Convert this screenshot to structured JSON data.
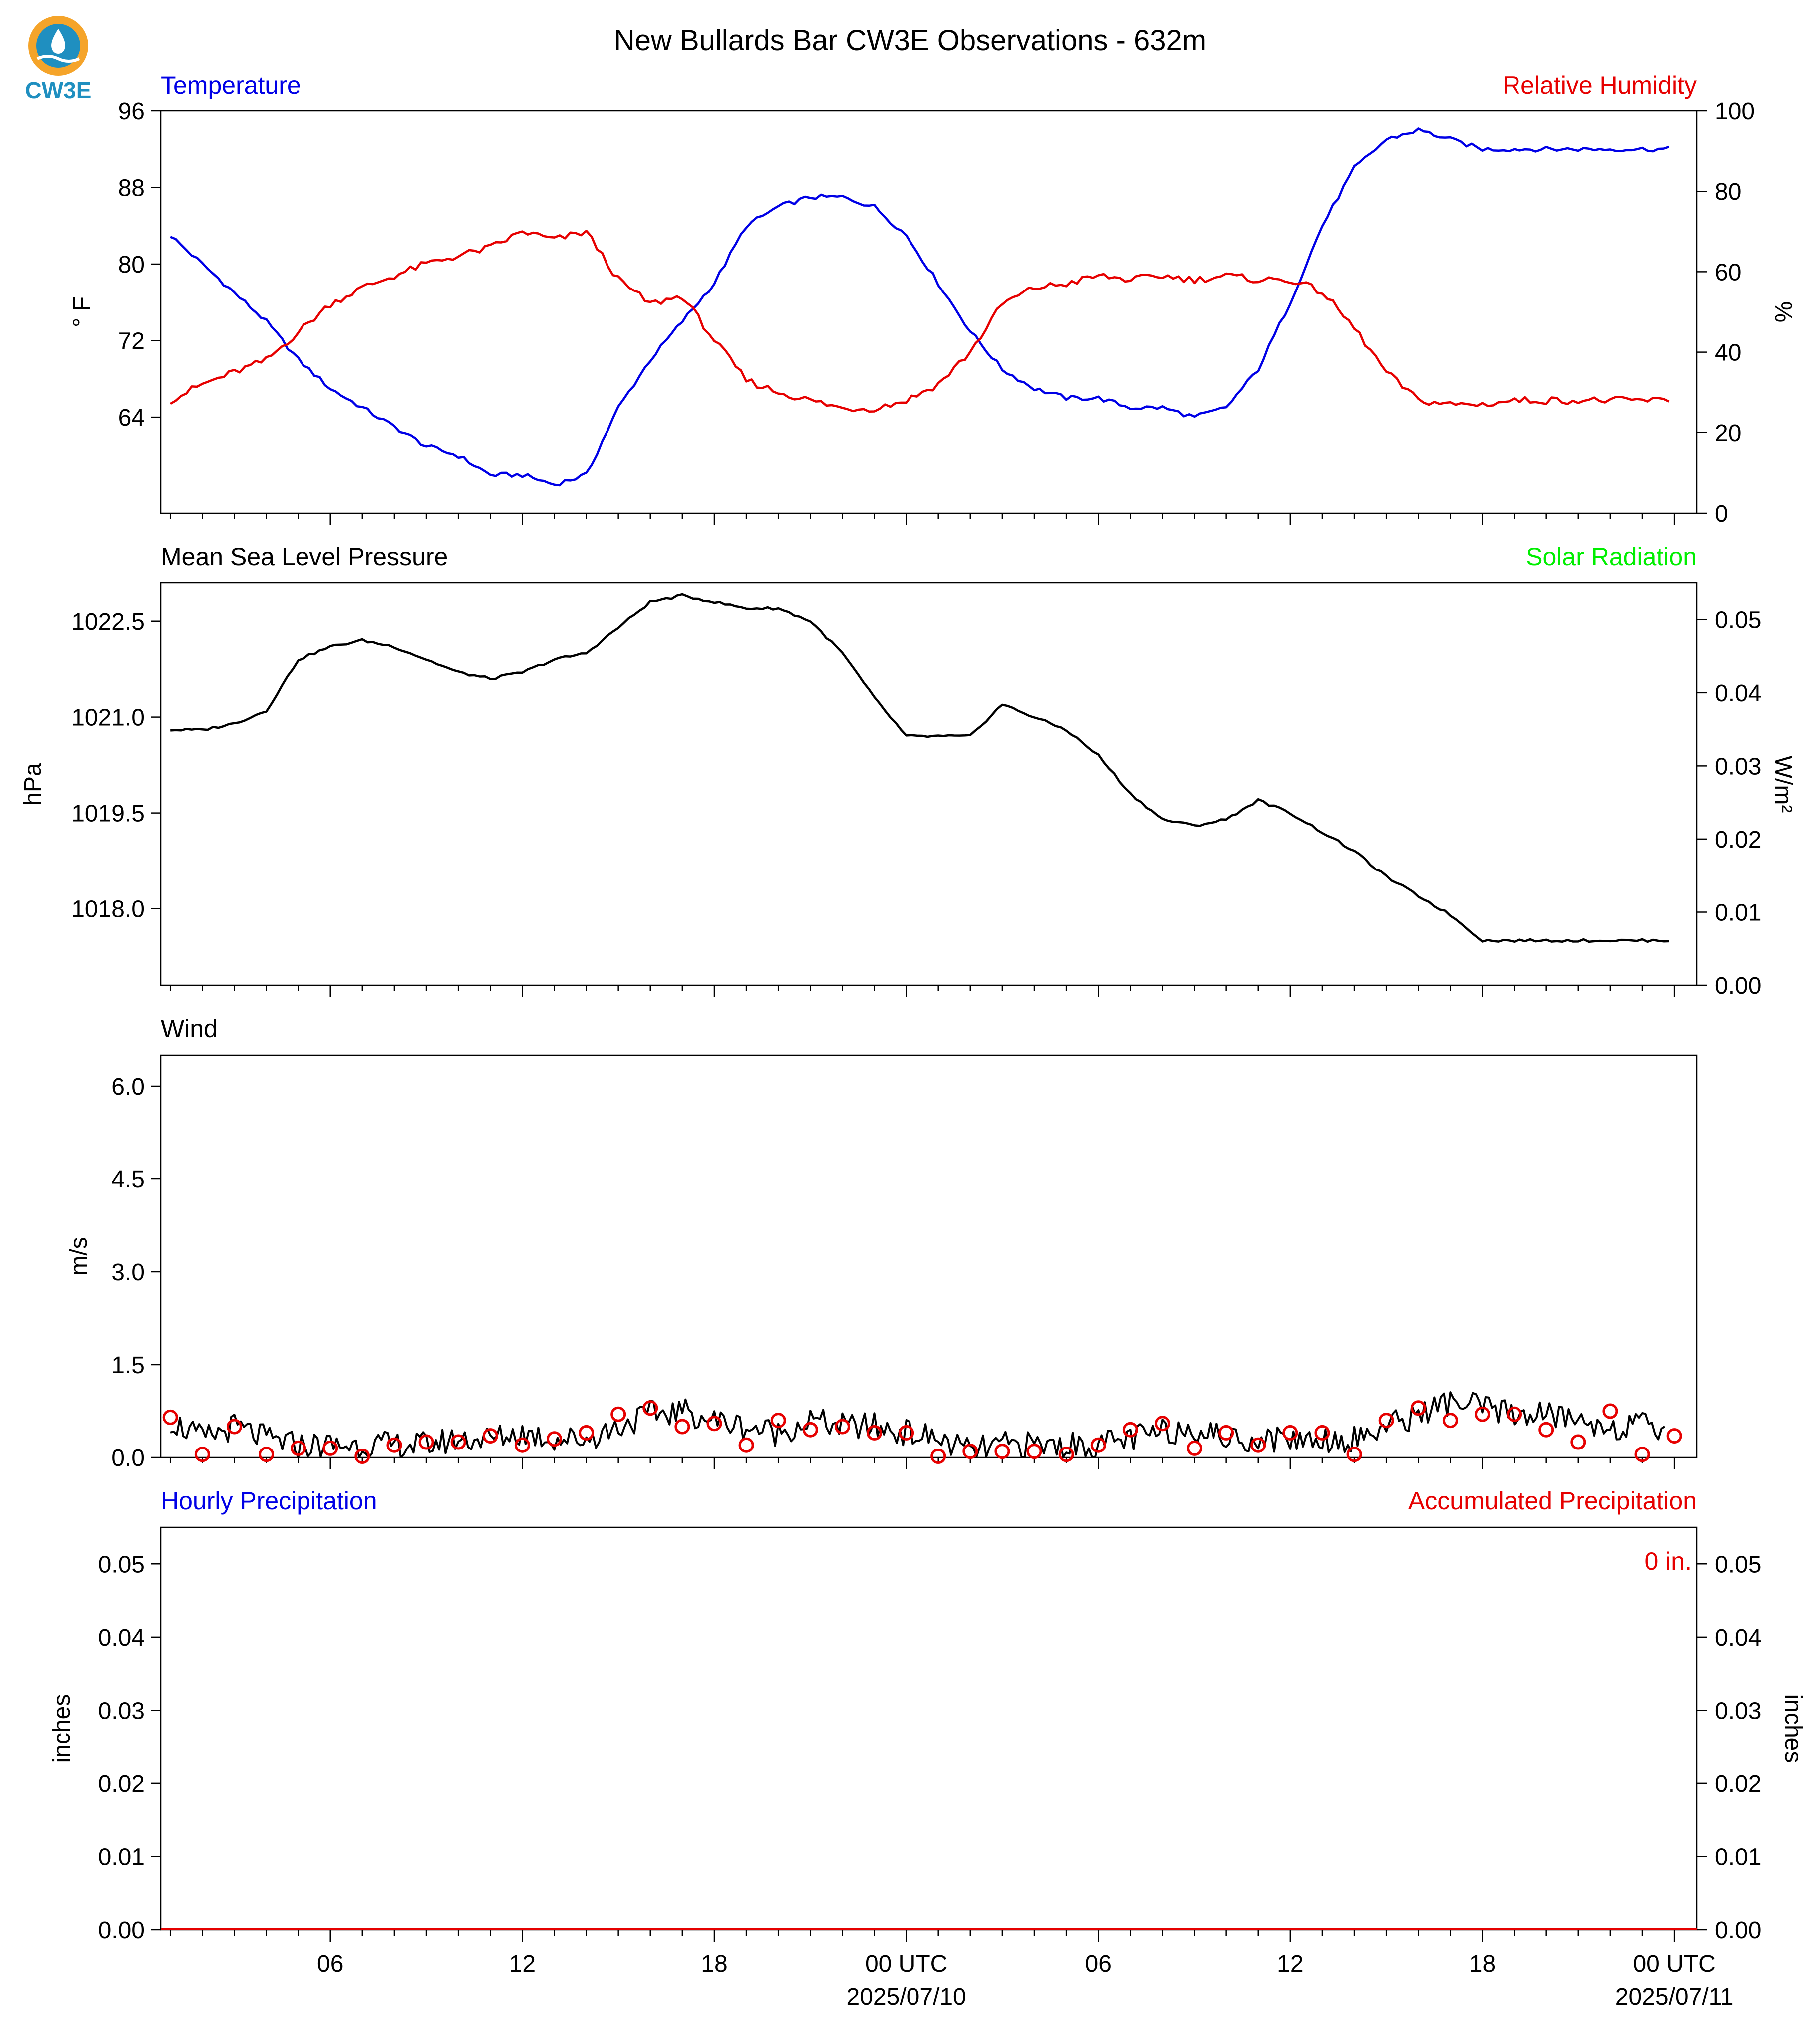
{
  "title": "New Bullards Bar CW3E Observations - 632m",
  "logo": {
    "text": "CW3E",
    "colors": {
      "ring": "#f5a42a",
      "body": "#1f8fc0",
      "text": "#1f8fc0"
    }
  },
  "colors": {
    "blue": "#0000e6",
    "red": "#e60000",
    "green": "#00ee00",
    "black": "#000000"
  },
  "x_axis": {
    "tick_labels": [
      "06",
      "12",
      "18",
      "00 UTC",
      "06",
      "12",
      "18",
      "00 UTC"
    ],
    "date_labels": [
      "2025/07/10",
      "2025/07/11"
    ]
  },
  "chart_data": [
    {
      "type": "line",
      "panel": "temperature-humidity",
      "left_title": "Temperature",
      "right_title": "Relative Humidity",
      "ylabel": "° F",
      "ylabel_right": "%",
      "ylim": [
        54,
        96
      ],
      "ylim_right": [
        0,
        100
      ],
      "yticks": [
        64,
        72,
        80,
        88,
        96
      ],
      "yticks_right": [
        0,
        20,
        40,
        60,
        80,
        100
      ],
      "x_hours": [
        0,
        1,
        2,
        3,
        4,
        5,
        6,
        7,
        8,
        9,
        10,
        11,
        12,
        13,
        14,
        15,
        16,
        17,
        18,
        19,
        20,
        21,
        22,
        23,
        24,
        25,
        26,
        27,
        28,
        29,
        30,
        31,
        32,
        33,
        34,
        35,
        36,
        37,
        38,
        39,
        40,
        41,
        42,
        43,
        44,
        45,
        46,
        47
      ],
      "series": [
        {
          "name": "Temperature",
          "axis": "left",
          "color": "#0000e6",
          "values": [
            83,
            80,
            77,
            74,
            70,
            67,
            65,
            63,
            61,
            60,
            58,
            58,
            57,
            58,
            65,
            70,
            74,
            78,
            84,
            86,
            87,
            87,
            86,
            83,
            78,
            73,
            69,
            67,
            66,
            66,
            65,
            65,
            64,
            65,
            69,
            76,
            84,
            90,
            93,
            94,
            93,
            92,
            92,
            92,
            92,
            92,
            92,
            92
          ]
        },
        {
          "name": "Relative Humidity",
          "axis": "right",
          "color": "#e60000",
          "values": [
            28,
            32,
            35,
            38,
            45,
            52,
            56,
            59,
            62,
            64,
            66,
            70,
            68,
            70,
            58,
            52,
            54,
            43,
            33,
            30,
            28,
            26,
            26,
            28,
            32,
            40,
            52,
            56,
            57,
            59,
            58,
            59,
            58,
            59,
            58,
            58,
            55,
            46,
            35,
            28,
            27,
            27,
            28,
            28,
            28,
            28,
            28,
            28
          ]
        }
      ]
    },
    {
      "type": "line",
      "panel": "pressure-solar",
      "left_title": "Mean Sea Level Pressure",
      "right_title": "Solar Radiation",
      "ylabel": "hPa",
      "ylabel_right": "W/m²",
      "ylim": [
        1016.8,
        1023.1
      ],
      "ylim_right": [
        0,
        0.055
      ],
      "yticks": [
        1018.0,
        1019.5,
        1021.0,
        1022.5
      ],
      "yticks_right": [
        0.0,
        0.01,
        0.02,
        0.03,
        0.04,
        0.05
      ],
      "series": [
        {
          "name": "Mean Sea Level Pressure",
          "axis": "left",
          "color": "#000000",
          "values": [
            1020.8,
            1020.8,
            1020.9,
            1021.1,
            1021.9,
            1022.1,
            1022.2,
            1022.1,
            1021.9,
            1021.7,
            1021.6,
            1021.7,
            1021.9,
            1022.0,
            1022.4,
            1022.8,
            1022.9,
            1022.8,
            1022.7,
            1022.7,
            1022.5,
            1022.0,
            1021.3,
            1020.7,
            1020.7,
            1020.7,
            1021.2,
            1021.0,
            1020.8,
            1020.4,
            1019.8,
            1019.4,
            1019.3,
            1019.4,
            1019.7,
            1019.5,
            1019.2,
            1018.9,
            1018.5,
            1018.2,
            1017.9,
            1017.5,
            1017.5,
            1017.5,
            1017.5,
            1017.5,
            1017.5,
            1017.5
          ]
        }
      ]
    },
    {
      "type": "line",
      "panel": "wind",
      "left_title": "Wind",
      "ylabel": "m/s",
      "ylim": [
        0,
        6.5
      ],
      "yticks": [
        0.0,
        1.5,
        3.0,
        4.5,
        6.0
      ],
      "series": [
        {
          "name": "Wind speed",
          "color": "#000000",
          "values": [
            0.6,
            0.3,
            0.5,
            0.3,
            0.2,
            0.2,
            0.2,
            0.2,
            0.2,
            0.3,
            0.3,
            0.4,
            0.3,
            0.3,
            0.5,
            0.7,
            0.75,
            0.6,
            0.5,
            0.4,
            0.6,
            0.5,
            0.5,
            0.4,
            0.3,
            0.1,
            0.2,
            0.2,
            0.2,
            0.2,
            0.3,
            0.4,
            0.5,
            0.3,
            0.3,
            0.3,
            0.3,
            0.3,
            0.5,
            0.7,
            0.9,
            0.8,
            0.7,
            0.7,
            0.6,
            0.5,
            0.5,
            0.5
          ]
        },
        {
          "name": "Hourly markers",
          "color": "#e60000",
          "values": [
            0.65,
            0.05,
            0.5,
            0.05,
            0.15,
            0.15,
            0.02,
            0.2,
            0.25,
            0.25,
            0.35,
            0.2,
            0.3,
            0.4,
            0.7,
            0.8,
            0.5,
            0.55,
            0.2,
            0.6,
            0.45,
            0.5,
            0.4,
            0.4,
            0.02,
            0.1,
            0.1,
            0.1,
            0.05,
            0.2,
            0.45,
            0.55,
            0.15,
            0.4,
            0.2,
            0.4,
            0.4,
            0.05,
            0.6,
            0.8,
            0.6,
            0.7,
            0.7,
            0.45,
            0.25,
            0.75,
            0.05,
            0.35
          ]
        }
      ]
    },
    {
      "type": "line",
      "panel": "precipitation",
      "left_title": "Hourly Precipitation",
      "right_title": "Accumulated Precipitation",
      "ylabel": "inches",
      "ylabel_right": "inches",
      "ylim": [
        0,
        0.055
      ],
      "ylim_right": [
        0,
        0.055
      ],
      "yticks": [
        0.0,
        0.01,
        0.02,
        0.03,
        0.04,
        0.05
      ],
      "yticks_right": [
        0.0,
        0.01,
        0.02,
        0.03,
        0.04,
        0.05
      ],
      "annotation": "0 in.",
      "series": [
        {
          "name": "Hourly Precipitation",
          "color": "#0000e6",
          "values": [
            0,
            0,
            0,
            0,
            0,
            0,
            0,
            0,
            0,
            0,
            0,
            0,
            0,
            0,
            0,
            0,
            0,
            0,
            0,
            0,
            0,
            0,
            0,
            0,
            0,
            0,
            0,
            0,
            0,
            0,
            0,
            0,
            0,
            0,
            0,
            0,
            0,
            0,
            0,
            0,
            0,
            0,
            0,
            0,
            0,
            0,
            0,
            0
          ]
        },
        {
          "name": "Accumulated Precipitation",
          "color": "#e60000",
          "values": [
            0,
            0,
            0,
            0,
            0,
            0,
            0,
            0,
            0,
            0,
            0,
            0,
            0,
            0,
            0,
            0,
            0,
            0,
            0,
            0,
            0,
            0,
            0,
            0,
            0,
            0,
            0,
            0,
            0,
            0,
            0,
            0,
            0,
            0,
            0,
            0,
            0,
            0,
            0,
            0,
            0,
            0,
            0,
            0,
            0,
            0,
            0,
            0
          ]
        }
      ]
    }
  ]
}
